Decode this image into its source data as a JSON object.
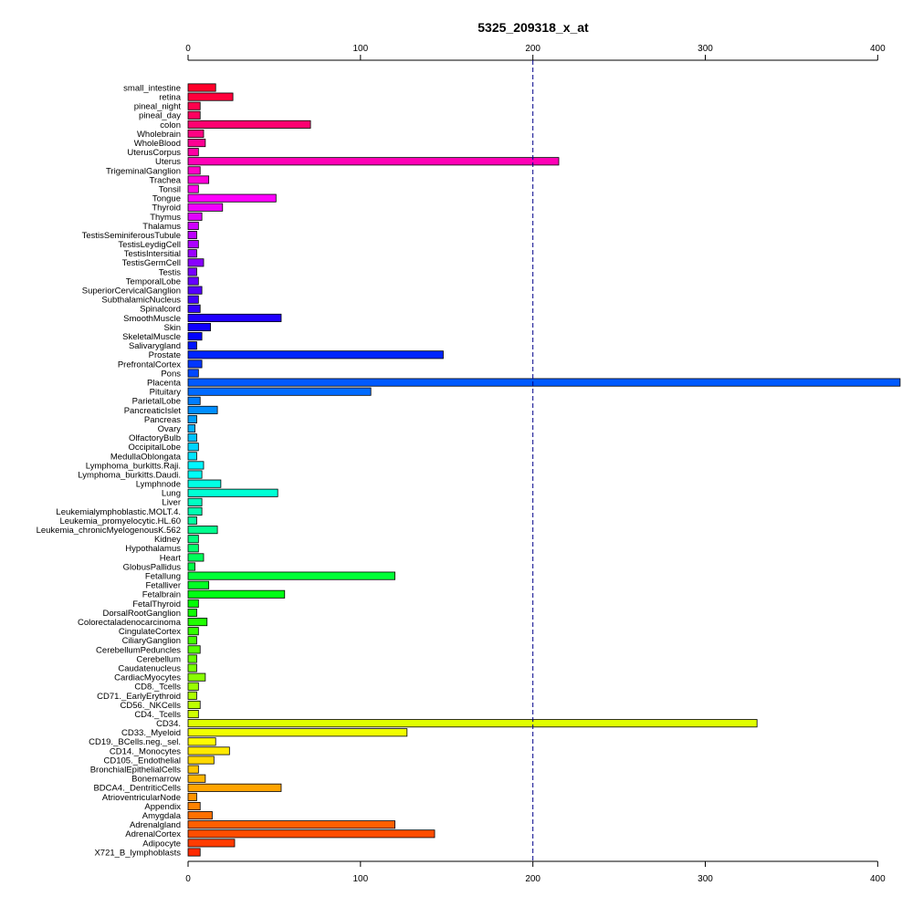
{
  "chart_data": {
    "type": "bar",
    "orientation": "horizontal",
    "title": "5325_209318_x_at",
    "xlabel": "",
    "ylabel": "",
    "xlim": [
      0,
      412
    ],
    "xticks": [
      0,
      100,
      200,
      300,
      400
    ],
    "xtick_labels": [
      "0",
      "100",
      "200",
      "300",
      "400"
    ],
    "reference_line": {
      "value": 200,
      "style": "dashed",
      "color": "#00008B"
    },
    "axis_positions": [
      "top",
      "bottom"
    ],
    "grid": false,
    "bar_colors": "rainbow (red to magenta to blue to cyan to green to yellow to orange to red, top to bottom)",
    "categories": [
      "small_intestine",
      "retina",
      "pineal_night",
      "pineal_day",
      "colon",
      "Wholebrain",
      "WholeBlood",
      "UterusCorpus",
      "Uterus",
      "TrigeminalGanglion",
      "Trachea",
      "Tonsil",
      "Tongue",
      "Thyroid",
      "Thymus",
      "Thalamus",
      "TestisSeminiferousTubule",
      "TestisLeydigCell",
      "TestisIntersitial",
      "TestisGermCell",
      "Testis",
      "TemporalLobe",
      "SuperiorCervicalGanglion",
      "SubthalamicNucleus",
      "Spinalcord",
      "SmoothMuscle",
      "Skin",
      "SkeletalMuscle",
      "Salivarygland",
      "Prostate",
      "PrefrontalCortex",
      "Pons",
      "Placenta",
      "Pituitary",
      "ParietalLobe",
      "PancreaticIslet",
      "Pancreas",
      "Ovary",
      "OlfactoryBulb",
      "OccipitalLobe",
      "MedullaOblongata",
      "Lymphoma_burkitts.Raji.",
      "Lymphoma_burkitts.Daudi.",
      "Lymphnode",
      "Lung",
      "Liver",
      "Leukemialymphoblastic.MOLT.4.",
      "Leukemia_promyelocytic.HL.60",
      "Leukemia_chronicMyelogenousK.562",
      "Kidney",
      "Hypothalamus",
      "Heart",
      "GlobusPallidus",
      "Fetallung",
      "Fetalliver",
      "Fetalbrain",
      "FetalThyroid",
      "DorsalRootGanglion",
      "Colorectaladenocarcinoma",
      "CingulateCortex",
      "CiliaryGanglion",
      "CerebellumPeduncles",
      "Cerebellum",
      "Caudatenucleus",
      "CardiacMyocytes",
      "CD8._Tcells",
      "CD71._EarlyErythroid",
      "CD56._NKCells",
      "CD4._Tcells",
      "CD34.",
      "CD33._Myeloid",
      "CD19._BCells.neg._sel.",
      "CD14._Monocytes",
      "CD105._Endothelial",
      "BronchialEpithelialCells",
      "Bonemarrow",
      "BDCA4._DentriticCells",
      "AtrioventricularNode",
      "Appendix",
      "Amygdala",
      "Adrenalgland",
      "AdrenalCortex",
      "Adipocyte",
      "X721_B_lymphoblasts"
    ],
    "values": [
      16,
      26,
      7,
      7,
      71,
      9,
      10,
      6,
      215,
      7,
      12,
      6,
      51,
      20,
      8,
      6,
      5,
      6,
      5,
      9,
      5,
      6,
      8,
      6,
      7,
      54,
      13,
      8,
      5,
      148,
      8,
      6,
      413,
      106,
      7,
      17,
      5,
      4,
      5,
      6,
      5,
      9,
      8,
      19,
      52,
      8,
      8,
      5,
      17,
      6,
      6,
      9,
      4,
      120,
      12,
      56,
      6,
      5,
      11,
      6,
      5,
      7,
      5,
      5,
      10,
      6,
      5,
      7,
      6,
      330,
      127,
      16,
      24,
      15,
      6,
      10,
      54,
      5,
      7,
      14,
      120,
      143,
      27,
      7
    ]
  }
}
